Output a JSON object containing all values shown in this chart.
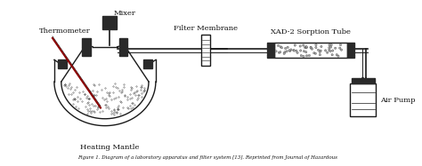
{
  "title": "",
  "bg_color": "#ffffff",
  "labels": {
    "mixer": "Mixer",
    "thermometer": "Thermometer",
    "filter_membrane": "Filter Membrane",
    "xad2_tube": "XAD-2 Sorption Tube",
    "heating_mantle": "Heating Mantle",
    "air_pump": "Air Pump"
  },
  "caption": "Figure 1. Diagram of a laboratory apparatus and filter system [13]. Reprinted from Journal of Hazardous",
  "line_color": "#1a1a1a",
  "fill_color": "#d0d0d0",
  "dark_color": "#2a2a2a"
}
